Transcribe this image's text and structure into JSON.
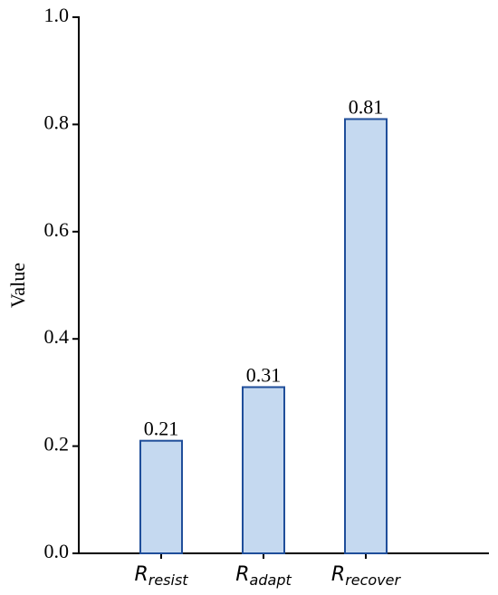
{
  "chart_data": {
    "type": "bar",
    "y_label": "Value",
    "categories": [
      {
        "symbol": "R",
        "subscript": "resist"
      },
      {
        "symbol": "R",
        "subscript": "adapt"
      },
      {
        "symbol": "R",
        "subscript": "recover"
      }
    ],
    "values": [
      0.21,
      0.31,
      0.81
    ],
    "color": "#c5d9f0",
    "edge_color": "#1f4e9a",
    "ylim": [
      0,
      1
    ],
    "yticks": [
      {
        "value": 0,
        "label": "0.0"
      },
      0.2,
      0.4,
      0.6,
      0.8,
      {
        "value": 1,
        "label": "1.0"
      }
    ],
    "grid": false
  }
}
